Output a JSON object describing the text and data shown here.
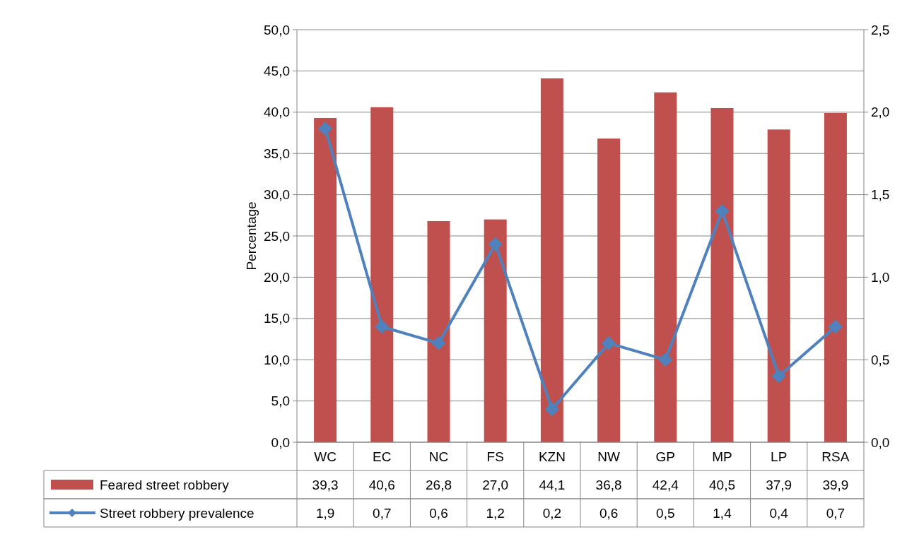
{
  "chart_data": {
    "type": "bar",
    "ylabel": "Percentage",
    "categories": [
      "WC",
      "EC",
      "NC",
      "FS",
      "KZN",
      "NW",
      "GP",
      "MP",
      "LP",
      "RSA"
    ],
    "series": [
      {
        "name": "Feared street robbery",
        "color": "#c0504d",
        "values": [
          39.3,
          40.6,
          26.8,
          27.0,
          44.1,
          36.8,
          42.4,
          40.5,
          37.9,
          39.9
        ],
        "value_labels": [
          "39,3",
          "40,6",
          "26,8",
          "27,0",
          "44,1",
          "36,8",
          "42,4",
          "40,5",
          "37,9",
          "39,9"
        ]
      },
      {
        "name": "Street robbery prevalence",
        "type": "line",
        "axis": "y2",
        "color": "#4f81bd",
        "marker": "diamond",
        "values": [
          1.9,
          0.7,
          0.6,
          1.2,
          0.2,
          0.6,
          0.5,
          1.4,
          0.4,
          0.7
        ],
        "value_labels": [
          "1,9",
          "0,7",
          "0,6",
          "1,2",
          "0,2",
          "0,6",
          "0,5",
          "1,4",
          "0,4",
          "0,7"
        ]
      }
    ],
    "ylim": [
      0,
      50
    ],
    "yticks": [
      {
        "value": 0,
        "label": "0,0"
      },
      {
        "value": 5,
        "label": "5,0"
      },
      {
        "value": 10,
        "label": "10,0"
      },
      {
        "value": 15,
        "label": "15,0"
      },
      {
        "value": 20,
        "label": "20,0"
      },
      {
        "value": 25,
        "label": "25,0"
      },
      {
        "value": 30,
        "label": "30,0"
      },
      {
        "value": 35,
        "label": "35,0"
      },
      {
        "value": 40,
        "label": "40,0"
      },
      {
        "value": 45,
        "label": "45,0"
      },
      {
        "value": 50,
        "label": "50,0"
      }
    ],
    "y2lim": [
      0,
      2.5
    ],
    "y2ticks": [
      {
        "value": 0,
        "label": "0,0"
      },
      {
        "value": 0.5,
        "label": "0,5"
      },
      {
        "value": 1,
        "label": "1,0"
      },
      {
        "value": 1.5,
        "label": "1,5"
      },
      {
        "value": 2,
        "label": "2,0"
      },
      {
        "value": 2.5,
        "label": "2,5"
      }
    ],
    "grid": "y",
    "legend": "bottom"
  }
}
